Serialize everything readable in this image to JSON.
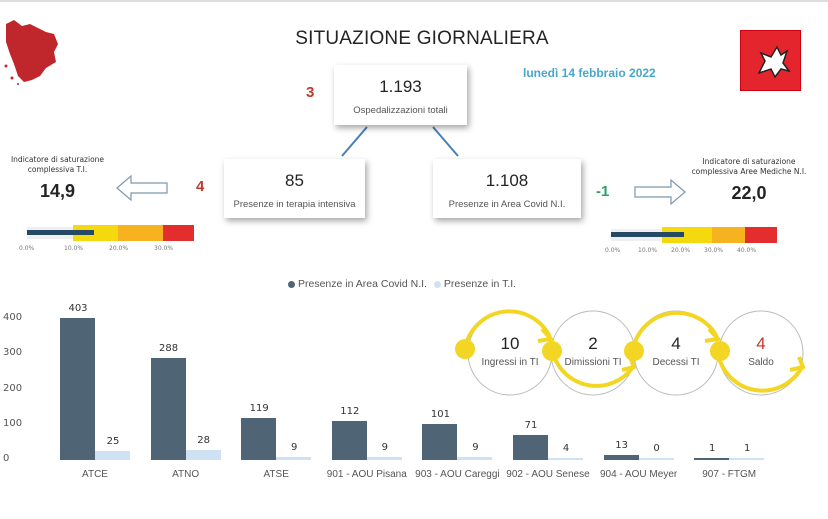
{
  "header": {
    "title": "SITUAZIONE GIORNALIERA",
    "date": "lunedì 14 febbraio 2022",
    "logo_left": "tuscany-map-icon",
    "logo_right": "regione-toscana-pegasus-logo"
  },
  "totals": {
    "value": "1.193",
    "label": "Ospedalizzazioni totali",
    "delta": "3"
  },
  "ti": {
    "value": "85",
    "label": "Presenze in terapia intensiva",
    "delta": "4"
  },
  "nonint": {
    "value": "1.108",
    "label": "Presenze in Area Covid N.I.",
    "delta": "-1"
  },
  "ind_ti": {
    "label1": "Indicatore di saturazione",
    "label2": "complessiva T.I.",
    "value": "14,9",
    "percent": 14.9,
    "ticks": [
      "0.0%",
      "10.0%",
      "20.0%",
      "30.0%"
    ]
  },
  "ind_ni": {
    "label1": "Indicatore di saturazione",
    "label2": "complessiva Aree Mediche N.I.",
    "value": "22,0",
    "percent": 22.0,
    "ticks": [
      "0.0%",
      "10.0%",
      "20.0%",
      "30.0%",
      "40.0%"
    ]
  },
  "colors": {
    "dark_bar": "#4f6474",
    "light_bar": "#cfe2f3",
    "red": "#c0392b",
    "green": "#2e9e6e",
    "yellow": "#f5d90f",
    "orange": "#f6b21f",
    "alarm": "#e42e2e",
    "date": "#4aa6c9"
  },
  "flow": [
    {
      "value": "10",
      "label": "Ingressi in TI"
    },
    {
      "value": "2",
      "label": "Dimissioni TI"
    },
    {
      "value": "4",
      "label": "Decessi TI"
    },
    {
      "value": "4",
      "label": "Saldo"
    }
  ],
  "chart_data": {
    "type": "bar",
    "legend_position": "top",
    "categories": [
      "ATCE",
      "ATNO",
      "ATSE",
      "901 - AOU Pisana",
      "903 - AOU Careggi",
      "902 - AOU Senese",
      "904 - AOU Meyer",
      "907 - FTGM"
    ],
    "series": [
      {
        "name": "Presenze in Area Covid N.I.",
        "values": [
          403,
          288,
          119,
          112,
          101,
          71,
          13,
          1
        ]
      },
      {
        "name": "Presenze in T.I.",
        "values": [
          25,
          28,
          9,
          9,
          9,
          4,
          0,
          1
        ]
      }
    ],
    "yticks": [
      "0",
      "100",
      "200",
      "300",
      "400"
    ],
    "ylim": [
      0,
      400
    ],
    "grid": false
  }
}
